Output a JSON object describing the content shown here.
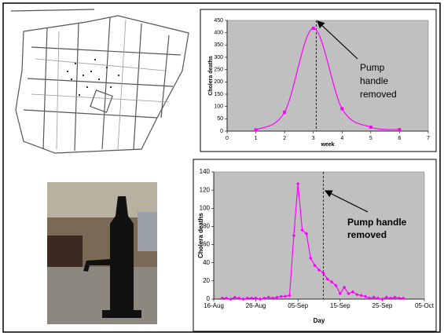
{
  "chart_data": [
    {
      "type": "line",
      "ylabel": "Cholera deaths",
      "xlabel": "week",
      "x": [
        1,
        2,
        3,
        4,
        5,
        6
      ],
      "values": [
        5,
        77,
        418,
        91,
        16,
        6
      ],
      "color": "#ff00ff",
      "smooth": true,
      "xlim": [
        0,
        7
      ],
      "xticks": [
        0,
        1,
        2,
        3,
        4,
        5,
        6,
        7
      ],
      "ylim": [
        0,
        450
      ],
      "yticks": [
        0,
        50,
        100,
        150,
        200,
        250,
        300,
        350,
        400,
        450
      ],
      "vline": 3.1,
      "annotation": [
        "Pump",
        "handle",
        "removed"
      ]
    },
    {
      "type": "line",
      "ylabel": "Cholera deaths",
      "xlabel": "Day",
      "x": [
        "18-Aug",
        "19-Aug",
        "20-Aug",
        "21-Aug",
        "22-Aug",
        "23-Aug",
        "24-Aug",
        "25-Aug",
        "26-Aug",
        "27-Aug",
        "28-Aug",
        "29-Aug",
        "30-Aug",
        "31-Aug",
        "01-Sep",
        "02-Sep",
        "03-Sep",
        "04-Sep",
        "05-Sep",
        "06-Sep",
        "07-Sep",
        "08-Sep",
        "09-Sep",
        "10-Sep",
        "11-Sep",
        "12-Sep",
        "13-Sep",
        "14-Sep",
        "15-Sep",
        "16-Sep",
        "17-Sep",
        "18-Sep",
        "19-Sep",
        "20-Sep",
        "21-Sep",
        "22-Sep",
        "23-Sep",
        "24-Sep",
        "25-Sep",
        "26-Sep",
        "27-Sep",
        "28-Sep",
        "29-Sep",
        "30-Sep"
      ],
      "values": [
        1,
        1,
        0,
        2,
        1,
        0,
        1,
        1,
        1,
        0,
        1,
        2,
        1,
        2,
        3,
        3,
        4,
        70,
        127,
        76,
        72,
        45,
        37,
        32,
        29,
        22,
        19,
        15,
        6,
        13,
        6,
        8,
        5,
        4,
        3,
        1,
        2,
        1,
        0,
        2,
        1,
        2,
        1,
        1
      ],
      "color": "#ff00ff",
      "smooth": false,
      "xlim": [
        "16-Aug",
        "05-Oct"
      ],
      "xticks": [
        "16-Aug",
        "26-Aug",
        "05-Sep",
        "15-Sep",
        "25-Sep",
        "05-Oct"
      ],
      "ylim": [
        0,
        140
      ],
      "yticks": [
        0,
        20,
        40,
        60,
        80,
        100,
        120,
        140
      ],
      "vline": "11-Sep",
      "annotation": [
        "Pump handle",
        "removed"
      ],
      "annotation_bold": true
    }
  ]
}
